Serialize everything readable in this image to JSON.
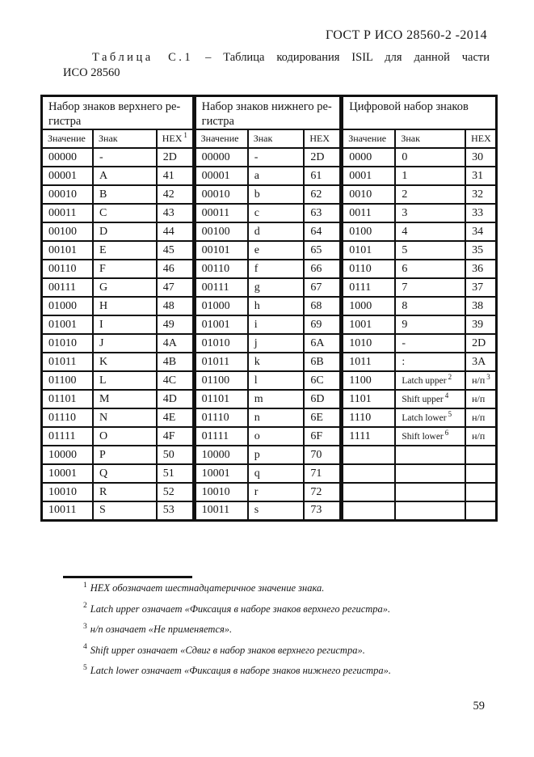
{
  "page": {
    "header": "ГОСТ Р ИСО 28560-2 -2014",
    "page_number": "59"
  },
  "title": {
    "label": "Таблица С.1",
    "dash": "–",
    "text": "Таблица кодирования ISIL для данной части",
    "line2": "ИСО 28560"
  },
  "table": {
    "groups": [
      {
        "title": "Набор знаков верхнего ре-\nгистра"
      },
      {
        "title": "Набор знаков нижнего ре-\nгистра"
      },
      {
        "title": "Цифровой набор знаков"
      }
    ],
    "subheaders": [
      {
        "t": "Значение"
      },
      {
        "t": "Знак"
      },
      {
        "t": "HEX",
        "s": "1"
      },
      {
        "t": "Значение"
      },
      {
        "t": "Знак"
      },
      {
        "t": "HEX"
      },
      {
        "t": "Значение"
      },
      {
        "t": "Знак"
      },
      {
        "t": "HEX"
      }
    ],
    "rows": [
      [
        "00000",
        "-",
        "2D",
        "00000",
        "-",
        "2D",
        "0000",
        "0",
        "30"
      ],
      [
        "00001",
        "A",
        "41",
        "00001",
        "a",
        "61",
        "0001",
        "1",
        "31"
      ],
      [
        "00010",
        "B",
        "42",
        "00010",
        "b",
        "62",
        "0010",
        "2",
        "32"
      ],
      [
        "00011",
        "C",
        "43",
        "00011",
        "c",
        "63",
        "0011",
        "3",
        "33"
      ],
      [
        "00100",
        "D",
        "44",
        "00100",
        "d",
        "64",
        "0100",
        "4",
        "34"
      ],
      [
        "00101",
        "E",
        "45",
        "00101",
        "e",
        "65",
        "0101",
        "5",
        "35"
      ],
      [
        "00110",
        "F",
        "46",
        "00110",
        "f",
        "66",
        "0110",
        "6",
        "36"
      ],
      [
        "00111",
        "G",
        "47",
        "00111",
        "g",
        "67",
        "0111",
        "7",
        "37"
      ],
      [
        "01000",
        "H",
        "48",
        "01000",
        "h",
        "68",
        "1000",
        "8",
        "38"
      ],
      [
        "01001",
        "I",
        "49",
        "01001",
        "i",
        "69",
        "1001",
        "9",
        "39"
      ],
      [
        "01010",
        "J",
        "4A",
        "01010",
        "j",
        "6A",
        "1010",
        "-",
        "2D"
      ],
      [
        "01011",
        "K",
        "4B",
        "01011",
        "k",
        "6B",
        "1011",
        ":",
        "3A"
      ],
      [
        "01100",
        "L",
        "4C",
        "01100",
        "l",
        "6C",
        "1100",
        {
          "t": "Latch upper",
          "s": "2"
        },
        {
          "t": "н/п",
          "s": "3"
        }
      ],
      [
        "01101",
        "M",
        "4D",
        "01101",
        "m",
        "6D",
        "1101",
        {
          "t": "Shift upper",
          "s": "4"
        },
        "н/п"
      ],
      [
        "01110",
        "N",
        "4E",
        "01110",
        "n",
        "6E",
        "1110",
        {
          "t": "Latch lower",
          "s": "5"
        },
        "н/п"
      ],
      [
        "01111",
        "O",
        "4F",
        "01111",
        "o",
        "6F",
        "1111",
        {
          "t": "Shift lower",
          "s": "6"
        },
        "н/п"
      ],
      [
        "10000",
        "P",
        "50",
        "10000",
        "p",
        "70",
        "",
        "",
        ""
      ],
      [
        "10001",
        "Q",
        "51",
        "10001",
        "q",
        "71",
        "",
        "",
        ""
      ],
      [
        "10010",
        "R",
        "52",
        "10010",
        "r",
        "72",
        "",
        "",
        ""
      ],
      [
        "10011",
        "S",
        "53",
        "10011",
        "s",
        "73",
        "",
        "",
        ""
      ]
    ]
  },
  "footnotes": [
    {
      "marker": "1",
      "text": "HEX обозначает шестнадцатеричное значение знака."
    },
    {
      "marker": "2",
      "text": "Latch upper означает «Фиксация в наборе знаков верхнего регистра»."
    },
    {
      "marker": "3",
      "text": "н/п означает «Не применяется»."
    },
    {
      "marker": "4",
      "text": "Shift upper означает «Сдвиг в набор знаков верхнего регистра»."
    },
    {
      "marker": "5",
      "text": "Latch lower означает «Фиксация в наборе знаков нижнего регистра»."
    }
  ]
}
